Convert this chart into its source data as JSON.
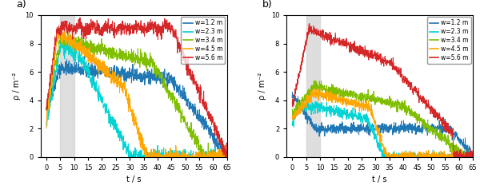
{
  "title_a": "a)",
  "title_b": "b)",
  "xlabel": "t / s",
  "ylabel": "ρ / m⁻²",
  "xlim": [
    -2,
    65
  ],
  "ylim": [
    0,
    10
  ],
  "xticks": [
    0,
    5,
    10,
    15,
    20,
    25,
    30,
    35,
    40,
    45,
    50,
    55,
    60,
    65
  ],
  "yticks": [
    0,
    2,
    4,
    6,
    8,
    10
  ],
  "shaded_region": [
    5,
    10
  ],
  "colors": [
    "#1f77b4",
    "#00d4d4",
    "#7fbf00",
    "#ffa500",
    "#d62728"
  ],
  "legend_labels": [
    "w=1.2 m",
    "w=2.3 m",
    "w=3.4 m",
    "w=4.5 m",
    "w=5.6 m"
  ],
  "linewidth": 0.7
}
